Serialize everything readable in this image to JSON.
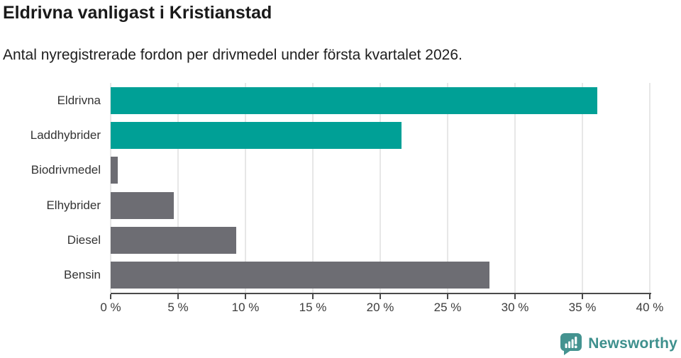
{
  "chart_data": {
    "type": "bar",
    "orientation": "horizontal",
    "title": "Eldrivna vanligast i Kristianstad",
    "subtitle": "Antal nyregistrerade fordon per drivmedel under första kvartalet 2026.",
    "categories": [
      "Eldrivna",
      "Laddhybrider",
      "Biodrivmedel",
      "Elhybrider",
      "Diesel",
      "Bensin"
    ],
    "values": [
      36.1,
      21.6,
      0.5,
      4.7,
      9.3,
      28.1
    ],
    "unit": "%",
    "bar_colors": [
      "#00a096",
      "#00a096",
      "#6d6d73",
      "#6d6d73",
      "#6d6d73",
      "#6d6d73"
    ],
    "xlim": [
      0,
      40
    ],
    "x_ticks": [
      0,
      5,
      10,
      15,
      20,
      25,
      30,
      35,
      40
    ],
    "x_tick_labels": [
      "0 %",
      "5 %",
      "10 %",
      "15 %",
      "20 %",
      "25 %",
      "30 %",
      "35 %",
      "40 %"
    ],
    "grid": "vertical-light",
    "legend": "none"
  },
  "footer": {
    "brand": "Newsworthy",
    "logo_icon": "speech-bubble-with-bar-chart-and-exclamation"
  },
  "colors": {
    "accent_teal": "#00a096",
    "bar_gray": "#6d6d73",
    "axis": "#4a4a4a",
    "gridline": "#e7e7e7",
    "title_text": "#1a1a1a",
    "subtitle_text": "#1e1e1e",
    "label_text": "#333333",
    "brand_teal": "#3e908d"
  }
}
